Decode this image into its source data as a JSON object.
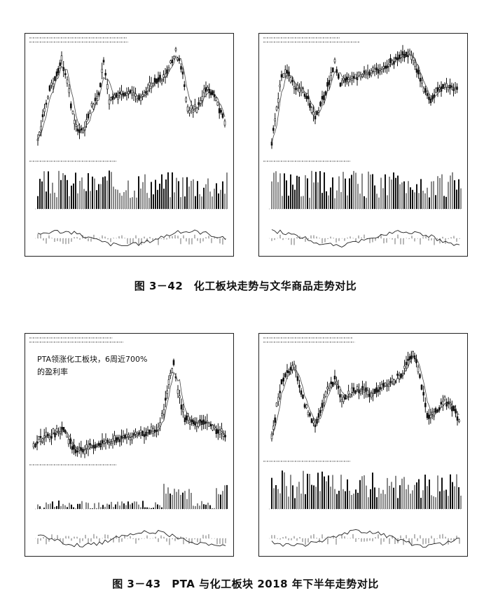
{
  "figures": [
    {
      "caption": "图 3－42　化工板块走势与文华商品走势对比",
      "panels": [
        "left",
        "right"
      ]
    },
    {
      "caption": "图 3－43　PTA 与化工板块 2018 年下半年走势对比",
      "annotation_line1": "PTA领涨化工板块，6周近700%",
      "annotation_line2": "的盈利率"
    }
  ]
}
